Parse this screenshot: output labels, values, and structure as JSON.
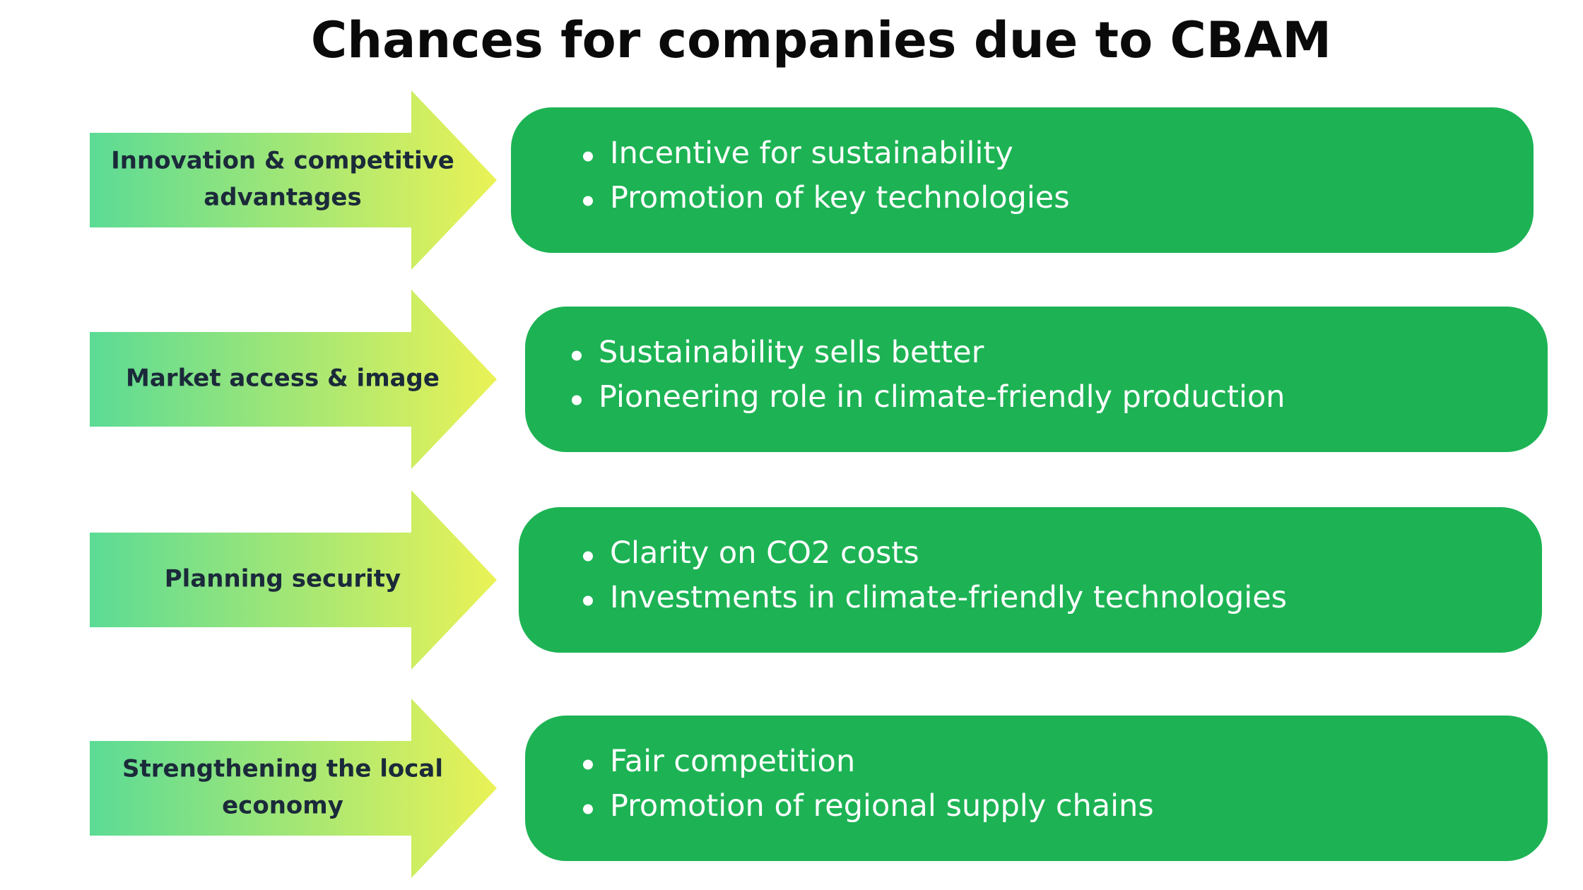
{
  "title": "Chances for companies due to CBAM",
  "rows": [
    {
      "label": [
        "Innovation & competitive",
        "advantages"
      ],
      "items": [
        "Incentive for sustainability",
        "Promotion of key technologies"
      ]
    },
    {
      "label": [
        "Market access & image"
      ],
      "items": [
        "Sustainability sells better",
        "Pioneering role in climate-friendly production"
      ]
    },
    {
      "label": [
        "Planning security"
      ],
      "items": [
        "Clarity on CO2 costs",
        "Investments in climate-friendly technologies"
      ]
    },
    {
      "label": [
        "Strengthening the local",
        "economy"
      ],
      "items": [
        "Fair competition",
        "Promotion of regional supply chains"
      ]
    }
  ]
}
